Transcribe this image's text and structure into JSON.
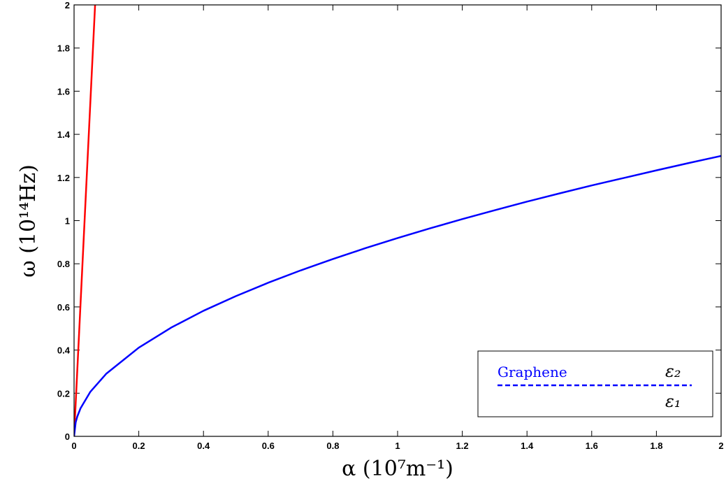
{
  "chart_data": {
    "type": "line",
    "title": "",
    "xlabel": "α (10⁷m⁻¹)",
    "ylabel": "ω (10¹⁴Hz)",
    "xlim": [
      0,
      2
    ],
    "ylim": [
      0,
      2
    ],
    "xticks": [
      "0",
      "0.2",
      "0.4",
      "0.6",
      "0.8",
      "1",
      "1.2",
      "1.4",
      "1.6",
      "1.8",
      "2"
    ],
    "yticks": [
      "0",
      "0.2",
      "0.4",
      "0.6",
      "0.8",
      "1",
      "1.2",
      "1.4",
      "1.6",
      "1.8",
      "2"
    ],
    "grid": false,
    "series": [
      {
        "color": "#ff0000",
        "points": [
          [
            0,
            0
          ],
          [
            0.065,
            2.0
          ]
        ]
      },
      {
        "color": "#0000ff",
        "points": [
          [
            0,
            0
          ],
          [
            0.005,
            0.065
          ],
          [
            0.01,
            0.092
          ],
          [
            0.02,
            0.13
          ],
          [
            0.05,
            0.206
          ],
          [
            0.1,
            0.291
          ],
          [
            0.2,
            0.411
          ],
          [
            0.3,
            0.504
          ],
          [
            0.4,
            0.582
          ],
          [
            0.5,
            0.65
          ],
          [
            0.6,
            0.712
          ],
          [
            0.7,
            0.769
          ],
          [
            0.8,
            0.822
          ],
          [
            0.9,
            0.872
          ],
          [
            1.0,
            0.919
          ],
          [
            1.1,
            0.964
          ],
          [
            1.2,
            1.007
          ],
          [
            1.3,
            1.048
          ],
          [
            1.4,
            1.088
          ],
          [
            1.5,
            1.126
          ],
          [
            1.6,
            1.163
          ],
          [
            1.7,
            1.198
          ],
          [
            1.8,
            1.233
          ],
          [
            1.9,
            1.267
          ],
          [
            2.0,
            1.3
          ]
        ]
      }
    ],
    "legend": {
      "placement": "bottom-right",
      "label": "Graphene",
      "upper_medium": "ε₂",
      "lower_medium": "ε₁",
      "line_color": "#0000ff",
      "line_style": "dashed"
    }
  }
}
